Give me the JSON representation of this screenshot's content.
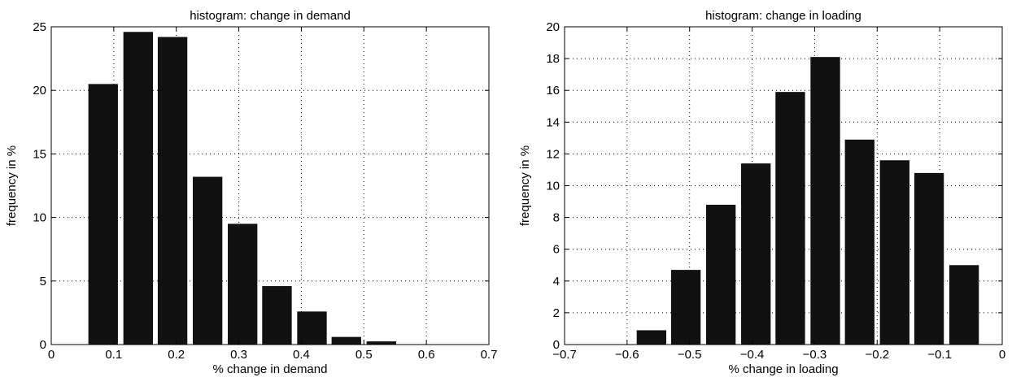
{
  "chart_data": [
    {
      "type": "bar",
      "title": "histogram: change in demand",
      "xlabel": "% change in demand",
      "ylabel": "frequency in %",
      "xlim": [
        0,
        0.7
      ],
      "ylim": [
        0,
        25
      ],
      "grid": true,
      "bar_color": "#111111",
      "xticks": [
        "0",
        "0.1",
        "0.2",
        "0.3",
        "0.4",
        "0.5",
        "0.6",
        "0.7"
      ],
      "xtick_values": [
        0,
        0.1,
        0.2,
        0.3,
        0.4,
        0.5,
        0.6,
        0.7
      ],
      "yticks": [
        "0",
        "5",
        "10",
        "15",
        "20",
        "25"
      ],
      "ytick_values": [
        0,
        5,
        10,
        15,
        20,
        25
      ],
      "bin_width": 0.0556,
      "bin_centers": [
        0.028,
        0.083,
        0.139,
        0.194,
        0.25,
        0.306,
        0.361,
        0.417,
        0.472,
        0.528,
        0.583,
        0.639
      ],
      "values": [
        0,
        20.5,
        24.6,
        24.2,
        13.2,
        9.5,
        4.6,
        2.6,
        0.6,
        0.25,
        0,
        0
      ]
    },
    {
      "type": "bar",
      "title": "histogram: change in loading",
      "xlabel": "% change in loading",
      "ylabel": "frequency in %",
      "xlim": [
        -0.7,
        0
      ],
      "ylim": [
        0,
        20
      ],
      "grid": true,
      "bar_color": "#111111",
      "xticks": [
        "−0.7",
        "−0.6",
        "−0.5",
        "−0.4",
        "−0.3",
        "−0.2",
        "−0.1",
        "0"
      ],
      "xtick_values": [
        -0.7,
        -0.6,
        -0.5,
        -0.4,
        -0.3,
        -0.2,
        -0.1,
        0
      ],
      "yticks": [
        "0",
        "2",
        "4",
        "6",
        "8",
        "10",
        "12",
        "14",
        "16",
        "18",
        "20"
      ],
      "ytick_values": [
        0,
        2,
        4,
        6,
        8,
        10,
        12,
        14,
        16,
        18,
        20
      ],
      "bin_width": 0.0556,
      "bin_centers": [
        -0.672,
        -0.617,
        -0.561,
        -0.506,
        -0.45,
        -0.394,
        -0.339,
        -0.283,
        -0.228,
        -0.172,
        -0.117,
        -0.061
      ],
      "values": [
        0,
        0,
        0.9,
        4.7,
        8.8,
        11.4,
        15.9,
        18.1,
        12.9,
        11.6,
        10.8,
        5.0
      ]
    }
  ]
}
